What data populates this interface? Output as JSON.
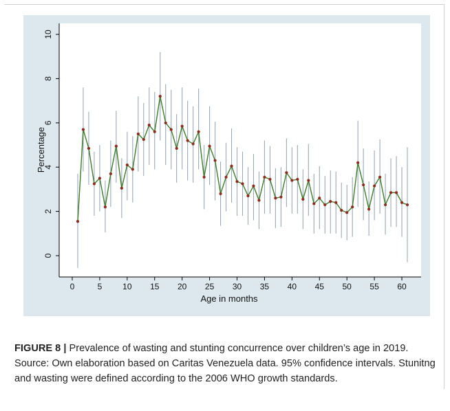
{
  "chart_data": {
    "type": "line",
    "title": "",
    "xlabel": "Age in months",
    "ylabel": "Percentage",
    "xlim": [
      0,
      62
    ],
    "ylim": [
      0,
      10
    ],
    "xticks": [
      0,
      5,
      10,
      15,
      20,
      25,
      30,
      35,
      40,
      45,
      50,
      55,
      60
    ],
    "yticks": [
      0,
      2,
      4,
      6,
      8,
      10
    ],
    "grid": false,
    "colors": {
      "line": "#3d7a2b",
      "marker": "#8a2b1e",
      "errorbar": "#98a8b4",
      "background": "#dde8ee",
      "plot_area": "#ffffff"
    },
    "x": [
      1,
      2,
      3,
      4,
      5,
      6,
      7,
      8,
      9,
      10,
      11,
      12,
      13,
      14,
      15,
      16,
      17,
      18,
      19,
      20,
      21,
      22,
      23,
      24,
      25,
      26,
      27,
      28,
      29,
      30,
      31,
      32,
      33,
      34,
      35,
      36,
      37,
      38,
      39,
      40,
      41,
      42,
      43,
      44,
      45,
      46,
      47,
      48,
      49,
      50,
      51,
      52,
      53,
      54,
      55,
      56,
      57,
      58,
      59,
      60,
      61
    ],
    "values": [
      1.55,
      5.7,
      4.85,
      3.25,
      3.5,
      2.2,
      3.7,
      4.95,
      3.05,
      4.1,
      3.9,
      5.5,
      5.25,
      5.9,
      5.6,
      7.2,
      6.0,
      5.7,
      4.85,
      5.85,
      5.2,
      5.05,
      5.6,
      3.55,
      4.95,
      4.3,
      2.8,
      3.55,
      4.05,
      3.35,
      3.25,
      2.7,
      3.15,
      2.5,
      3.55,
      3.45,
      2.6,
      2.65,
      3.75,
      3.4,
      3.45,
      2.55,
      3.4,
      2.35,
      2.6,
      2.3,
      2.45,
      2.4,
      2.05,
      1.95,
      2.2,
      4.2,
      3.2,
      2.1,
      3.15,
      3.55,
      2.3,
      2.85,
      2.85,
      2.4,
      2.3
    ],
    "lower": [
      -0.55,
      3.8,
      3.2,
      1.8,
      2.0,
      1.05,
      2.2,
      3.3,
      1.7,
      2.5,
      2.4,
      3.8,
      3.6,
      4.1,
      3.9,
      5.2,
      4.1,
      3.9,
      3.3,
      3.9,
      3.4,
      3.3,
      3.9,
      2.1,
      3.2,
      2.5,
      1.35,
      2.0,
      2.4,
      1.8,
      1.8,
      1.4,
      1.6,
      1.2,
      1.9,
      1.9,
      1.25,
      1.3,
      2.2,
      1.9,
      1.9,
      1.2,
      1.8,
      1.0,
      1.2,
      1.0,
      1.0,
      1.0,
      0.8,
      0.7,
      0.85,
      2.2,
      1.6,
      0.9,
      1.6,
      1.9,
      0.95,
      1.3,
      1.3,
      0.85,
      -0.3
    ],
    "upper": [
      3.7,
      7.6,
      6.5,
      4.7,
      5.0,
      3.4,
      5.2,
      6.55,
      4.4,
      5.6,
      5.4,
      7.2,
      6.9,
      7.6,
      7.4,
      9.2,
      7.75,
      7.5,
      6.4,
      7.6,
      7.0,
      6.75,
      7.55,
      5.0,
      6.75,
      6.05,
      4.25,
      5.1,
      5.75,
      4.9,
      4.7,
      4.0,
      4.6,
      3.8,
      5.2,
      4.95,
      3.95,
      4.0,
      5.3,
      4.9,
      5.0,
      3.9,
      5.05,
      3.7,
      4.05,
      3.6,
      3.85,
      3.8,
      3.3,
      3.2,
      3.55,
      6.1,
      4.85,
      3.35,
      4.75,
      5.25,
      3.7,
      4.4,
      4.5,
      4.0,
      4.9
    ]
  },
  "caption": {
    "label": "FIGURE 8 |",
    "text": " Prevalence of wasting and stunting concurrence over children’s age in 2019. Source: Own elaboration based on Caritas Venezuela data. 95% confidence intervals. Stunitng and wasting were defined according to the 2006 WHO growth standards."
  }
}
